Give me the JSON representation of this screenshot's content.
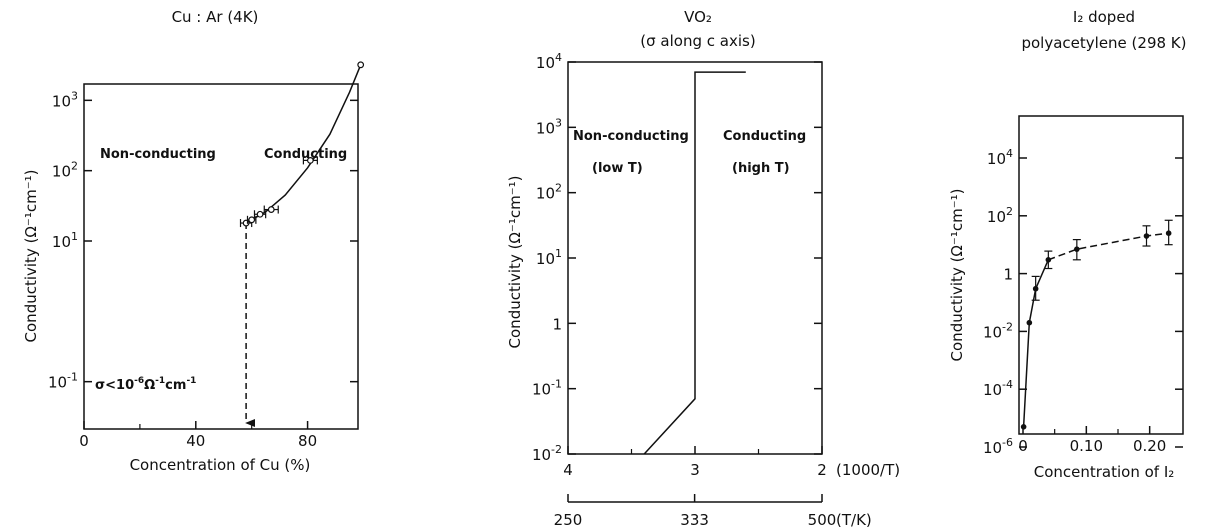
{
  "chart_data": [
    {
      "type": "scatter",
      "title": "Cu : Ar (4K)",
      "xlabel": "Concentration of Cu (%)",
      "ylabel": "Conductivity (Ω⁻¹cm⁻¹)",
      "xlim": [
        0,
        100
      ],
      "ylim": [
        0.01,
        10000
      ],
      "yscale": "log",
      "x_ticks": [
        "0",
        "40",
        "80"
      ],
      "y_ticks": [
        {
          "value": 0.1,
          "base": "10",
          "exp": "-1"
        },
        {
          "value": 10,
          "base": "10",
          "exp": "1"
        },
        {
          "value": 100,
          "base": "10",
          "exp": "2"
        },
        {
          "value": 1000,
          "base": "10",
          "exp": "3"
        }
      ],
      "points": [
        {
          "x": 58,
          "y": 18,
          "xerr": 2
        },
        {
          "x": 60,
          "y": 20,
          "xerr": 1.5
        },
        {
          "x": 63,
          "y": 24,
          "xerr": 2
        },
        {
          "x": 67,
          "y": 28,
          "xerr": 2.5
        },
        {
          "x": 81,
          "y": 140,
          "xerr": 2.5
        },
        {
          "x": 99,
          "y": 3200,
          "xerr": 0
        }
      ],
      "fit_curve": [
        [
          58,
          18
        ],
        [
          65,
          26
        ],
        [
          72,
          45
        ],
        [
          80,
          110
        ],
        [
          88,
          330
        ],
        [
          95,
          1300
        ],
        [
          99,
          3200
        ]
      ],
      "threshold_x": 58,
      "annotations": {
        "left_region": "Non-conducting",
        "right_region": "Conducting",
        "sigma_prefix": "σ<10",
        "sigma_exp1": "-6",
        "sigma_mid": "Ω",
        "sigma_exp2": "-1",
        "sigma_suffix": "cm",
        "sigma_exp3": "-1"
      }
    },
    {
      "type": "line",
      "title": "VO₂",
      "subtitle": "(σ along c axis)",
      "xlabel": "(1000/T)",
      "xlabel2": "(T/K)",
      "ylabel": "Conductivity (Ω⁻¹cm⁻¹)",
      "xlim": [
        4,
        2
      ],
      "ylim": [
        0.01,
        10000
      ],
      "yscale": "log",
      "x_ticks": [
        "4",
        "3",
        "2"
      ],
      "x2_ticks": [
        "250",
        "333",
        "500"
      ],
      "y_ticks": [
        {
          "value": 0.01,
          "base": "10",
          "exp": "-2"
        },
        {
          "value": 0.1,
          "base": "10",
          "exp": "-1"
        },
        {
          "value": 1,
          "base": "1",
          "exp": ""
        },
        {
          "value": 10,
          "base": "10",
          "exp": "1"
        },
        {
          "value": 100,
          "base": "10",
          "exp": "2"
        },
        {
          "value": 1000,
          "base": "10",
          "exp": "3"
        },
        {
          "value": 10000,
          "base": "10",
          "exp": "4"
        }
      ],
      "series": [
        {
          "values": [
            [
              3.4,
              0.01
            ],
            [
              3.0,
              0.07
            ],
            [
              3.0,
              7000
            ],
            [
              2.6,
              7000
            ]
          ]
        }
      ],
      "annotations": {
        "left_1": "Non-conducting",
        "left_2": "(low  T)",
        "right_1": "Conducting",
        "right_2": "(high  T)"
      }
    },
    {
      "type": "scatter",
      "title": "I₂  doped",
      "subtitle": "polyacetylene (298 K)",
      "xlabel": "Concentration of I₂",
      "ylabel": "Conductivity (Ω⁻¹cm⁻¹)",
      "xlim": [
        0,
        0.24
      ],
      "ylim": [
        1e-06,
        10000
      ],
      "yscale": "log",
      "x_ticks": [
        "0",
        "0.10",
        "0.20"
      ],
      "y_ticks": [
        {
          "value": 1e-06,
          "base": "10",
          "exp": "-6"
        },
        {
          "value": 0.0001,
          "base": "10",
          "exp": "-4"
        },
        {
          "value": 0.01,
          "base": "10",
          "exp": "-2"
        },
        {
          "value": 1,
          "base": "1",
          "exp": ""
        },
        {
          "value": 100,
          "base": "10",
          "exp": "2"
        },
        {
          "value": 10000,
          "base": "10",
          "exp": "4"
        }
      ],
      "points": [
        {
          "x": 0.001,
          "y": 5e-06,
          "ylo": 5e-06,
          "yhi": 5e-06
        },
        {
          "x": 0.01,
          "y": 0.02,
          "ylo": 0.02,
          "yhi": 0.02
        },
        {
          "x": 0.02,
          "y": 0.3,
          "ylo": 0.12,
          "yhi": 0.8
        },
        {
          "x": 0.04,
          "y": 3,
          "ylo": 1.5,
          "yhi": 6
        },
        {
          "x": 0.085,
          "y": 7,
          "ylo": 3,
          "yhi": 15
        },
        {
          "x": 0.195,
          "y": 20,
          "ylo": 9,
          "yhi": 45
        },
        {
          "x": 0.23,
          "y": 25,
          "ylo": 10,
          "yhi": 70
        }
      ]
    }
  ]
}
